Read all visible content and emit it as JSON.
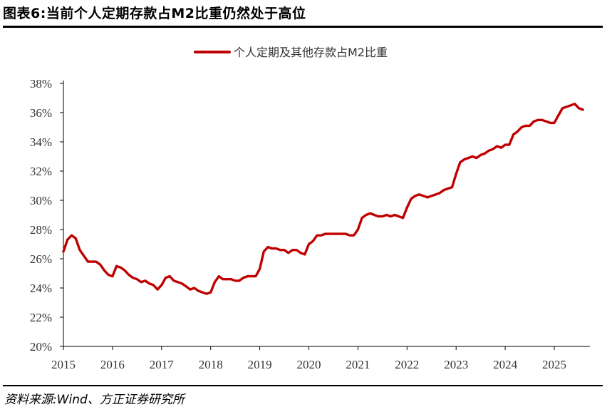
{
  "header": {
    "title": "图表6:当前个人定期存款占M2比重仍然处于高位"
  },
  "footer": {
    "source": "资料来源:Wind、方正证券研究所"
  },
  "colors": {
    "series": "#c00000",
    "axis": "#000000",
    "text": "#333333"
  },
  "chart_data": {
    "type": "line",
    "title": "",
    "xlabel": "",
    "ylabel": "",
    "x_tick_labels": [
      "2015",
      "2016",
      "2017",
      "2018",
      "2019",
      "2020",
      "2021",
      "2022",
      "2023",
      "2024",
      "2025"
    ],
    "y_tick_labels": [
      "20%",
      "22%",
      "24%",
      "26%",
      "28%",
      "30%",
      "32%",
      "34%",
      "36%",
      "38%"
    ],
    "ylim": [
      20,
      38
    ],
    "xlim": [
      "2015-01",
      "2025-08"
    ],
    "grid": false,
    "legend_position": "top-center",
    "series": [
      {
        "name": "个人定期及其他存款占M2比重",
        "unit": "%",
        "x": [
          "2015-01",
          "2015-02",
          "2015-03",
          "2015-04",
          "2015-05",
          "2015-06",
          "2015-07",
          "2015-08",
          "2015-09",
          "2015-10",
          "2015-11",
          "2015-12",
          "2016-01",
          "2016-02",
          "2016-03",
          "2016-04",
          "2016-05",
          "2016-06",
          "2016-07",
          "2016-08",
          "2016-09",
          "2016-10",
          "2016-11",
          "2016-12",
          "2017-01",
          "2017-02",
          "2017-03",
          "2017-04",
          "2017-05",
          "2017-06",
          "2017-07",
          "2017-08",
          "2017-09",
          "2017-10",
          "2017-11",
          "2017-12",
          "2018-01",
          "2018-02",
          "2018-03",
          "2018-04",
          "2018-05",
          "2018-06",
          "2018-07",
          "2018-08",
          "2018-09",
          "2018-10",
          "2018-11",
          "2018-12",
          "2019-01",
          "2019-02",
          "2019-03",
          "2019-04",
          "2019-05",
          "2019-06",
          "2019-07",
          "2019-08",
          "2019-09",
          "2019-10",
          "2019-11",
          "2019-12",
          "2020-01",
          "2020-02",
          "2020-03",
          "2020-04",
          "2020-05",
          "2020-06",
          "2020-07",
          "2020-08",
          "2020-09",
          "2020-10",
          "2020-11",
          "2020-12",
          "2021-01",
          "2021-02",
          "2021-03",
          "2021-04",
          "2021-05",
          "2021-06",
          "2021-07",
          "2021-08",
          "2021-09",
          "2021-10",
          "2021-11",
          "2021-12",
          "2022-01",
          "2022-02",
          "2022-03",
          "2022-04",
          "2022-05",
          "2022-06",
          "2022-07",
          "2022-08",
          "2022-09",
          "2022-10",
          "2022-11",
          "2022-12",
          "2023-01",
          "2023-02",
          "2023-03",
          "2023-04",
          "2023-05",
          "2023-06",
          "2023-07",
          "2023-08",
          "2023-09",
          "2023-10",
          "2023-11",
          "2023-12",
          "2024-01",
          "2024-02",
          "2024-03",
          "2024-04",
          "2024-05",
          "2024-06",
          "2024-07",
          "2024-08",
          "2024-09",
          "2024-10",
          "2024-11",
          "2024-12",
          "2025-01",
          "2025-02",
          "2025-03",
          "2025-04",
          "2025-05",
          "2025-06",
          "2025-07",
          "2025-08"
        ],
        "values": [
          26.5,
          27.3,
          27.6,
          27.4,
          26.6,
          26.2,
          25.8,
          25.8,
          25.8,
          25.6,
          25.2,
          24.9,
          24.8,
          25.5,
          25.4,
          25.2,
          24.9,
          24.7,
          24.6,
          24.4,
          24.5,
          24.3,
          24.2,
          23.9,
          24.2,
          24.7,
          24.8,
          24.5,
          24.4,
          24.3,
          24.1,
          23.9,
          24.0,
          23.8,
          23.7,
          23.6,
          23.7,
          24.4,
          24.8,
          24.6,
          24.6,
          24.6,
          24.5,
          24.5,
          24.7,
          24.8,
          24.8,
          24.8,
          25.3,
          26.5,
          26.8,
          26.7,
          26.7,
          26.6,
          26.6,
          26.4,
          26.6,
          26.6,
          26.4,
          26.3,
          27.0,
          27.2,
          27.6,
          27.6,
          27.7,
          27.7,
          27.7,
          27.7,
          27.7,
          27.7,
          27.6,
          27.6,
          28.0,
          28.8,
          29.0,
          29.1,
          29.0,
          28.9,
          28.9,
          29.0,
          28.9,
          29.0,
          28.9,
          28.8,
          29.5,
          30.1,
          30.3,
          30.4,
          30.3,
          30.2,
          30.3,
          30.4,
          30.5,
          30.7,
          30.8,
          30.9,
          31.8,
          32.6,
          32.8,
          32.9,
          33.0,
          32.9,
          33.1,
          33.2,
          33.4,
          33.5,
          33.7,
          33.6,
          33.8,
          33.8,
          34.5,
          34.7,
          35.0,
          35.1,
          35.1,
          35.4,
          35.5,
          35.5,
          35.4,
          35.3,
          35.3,
          35.8,
          36.3,
          36.4,
          36.5,
          36.6,
          36.3,
          36.2
        ]
      }
    ]
  }
}
